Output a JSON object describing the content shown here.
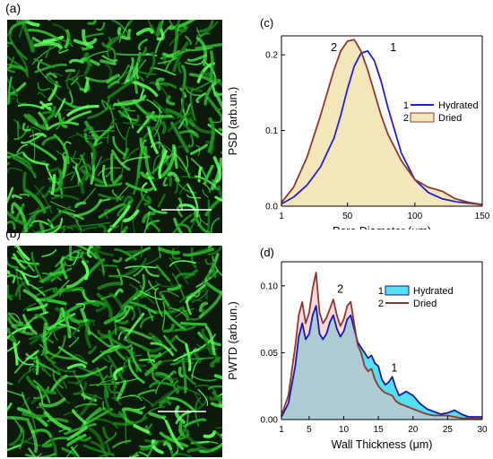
{
  "panels": {
    "a": {
      "label": "(a)",
      "description_hidden": ""
    },
    "b": {
      "label": "(b)"
    }
  },
  "chart_data": [
    {
      "panel_label": "(c)",
      "type": "area",
      "xlabel": "Pore  Diameter  (μm)",
      "ylabel": "PSD  (arb.un.)",
      "xlim": [
        1,
        150
      ],
      "ylim": [
        0,
        0.225
      ],
      "xticks": [
        1,
        50,
        100,
        150
      ],
      "yticks": [
        0.0,
        0.1,
        0.2
      ],
      "ytick_labels": [
        "0.0",
        "0.1",
        "0.2"
      ],
      "grid": false,
      "legend_position": "right",
      "series": [
        {
          "name": "Hydrated",
          "number": "1",
          "style": "line",
          "color": "#2020d0",
          "x": [
            1,
            10,
            20,
            30,
            40,
            45,
            50,
            55,
            60,
            65,
            70,
            75,
            80,
            90,
            100,
            110,
            120,
            130,
            140,
            150
          ],
          "y": [
            0.003,
            0.012,
            0.028,
            0.052,
            0.09,
            0.12,
            0.155,
            0.185,
            0.202,
            0.205,
            0.192,
            0.165,
            0.13,
            0.07,
            0.035,
            0.018,
            0.01,
            0.006,
            0.004,
            0.002
          ]
        },
        {
          "name": "Dried",
          "number": "2",
          "style": "filled",
          "color": "#8b3a2a",
          "fill": "#f4e6bb",
          "x": [
            1,
            10,
            20,
            30,
            40,
            45,
            50,
            55,
            60,
            65,
            70,
            75,
            80,
            90,
            100,
            110,
            120,
            130,
            140,
            150
          ],
          "y": [
            0.005,
            0.025,
            0.065,
            0.12,
            0.18,
            0.205,
            0.218,
            0.22,
            0.205,
            0.18,
            0.15,
            0.12,
            0.095,
            0.06,
            0.035,
            0.025,
            0.02,
            0.01,
            0.005,
            0.002
          ]
        }
      ],
      "curve_labels": [
        {
          "text": "2",
          "x": 40,
          "y": 0.205
        },
        {
          "text": "1",
          "x": 84,
          "y": 0.205
        }
      ]
    },
    {
      "panel_label": "(d)",
      "type": "area",
      "xlabel": "Wall  Thickness  (μm)",
      "ylabel": "PWTD  (arb.un.)",
      "xlim": [
        1,
        30
      ],
      "ylim": [
        0,
        0.118
      ],
      "xticks": [
        1,
        5,
        10,
        15,
        20,
        25,
        30
      ],
      "yticks": [
        0.0,
        0.05,
        0.1
      ],
      "ytick_labels": [
        "0.00",
        "0.05",
        "0.10"
      ],
      "grid": false,
      "legend_position": "top-right",
      "series": [
        {
          "name": "Hydrated",
          "number": "1",
          "style": "filled",
          "color": "#1a1aa8",
          "fill": "#55dff0",
          "x": [
            1,
            2,
            3,
            3.5,
            4,
            4.5,
            5,
            5.5,
            6,
            6.5,
            7,
            7.5,
            8,
            8.5,
            9,
            9.5,
            10,
            10.5,
            11,
            11.5,
            12,
            12.5,
            13,
            13.5,
            14,
            14.5,
            15,
            15.5,
            16,
            16.5,
            17,
            17.5,
            18,
            19,
            20,
            21,
            22,
            23,
            24,
            25,
            26,
            27,
            28,
            29,
            30
          ],
          "y": [
            0.002,
            0.012,
            0.04,
            0.062,
            0.072,
            0.06,
            0.064,
            0.078,
            0.085,
            0.064,
            0.06,
            0.064,
            0.073,
            0.078,
            0.068,
            0.062,
            0.066,
            0.075,
            0.078,
            0.068,
            0.058,
            0.054,
            0.05,
            0.046,
            0.048,
            0.042,
            0.04,
            0.03,
            0.026,
            0.028,
            0.032,
            0.024,
            0.018,
            0.021,
            0.018,
            0.012,
            0.008,
            0.006,
            0.004,
            0.005,
            0.007,
            0.004,
            0.002,
            0.002,
            0.002
          ]
        },
        {
          "name": "Dried",
          "number": "2",
          "style": "line",
          "color": "#8b3a2a",
          "fill": "#f5b8c0",
          "x": [
            1,
            2,
            3,
            3.5,
            4,
            4.5,
            5,
            5.5,
            6,
            6.5,
            7,
            7.5,
            8,
            8.5,
            9,
            9.5,
            10,
            10.5,
            11,
            11.5,
            12,
            12.5,
            13,
            13.5,
            14,
            14.5,
            15,
            15.5,
            16,
            16.5,
            17,
            17.5,
            18,
            19,
            20,
            21,
            22,
            23,
            24,
            25,
            26,
            27,
            28,
            29,
            30
          ],
          "y": [
            0.003,
            0.018,
            0.055,
            0.078,
            0.088,
            0.072,
            0.08,
            0.098,
            0.11,
            0.08,
            0.072,
            0.076,
            0.083,
            0.09,
            0.078,
            0.07,
            0.075,
            0.085,
            0.088,
            0.072,
            0.056,
            0.05,
            0.04,
            0.036,
            0.038,
            0.03,
            0.025,
            0.022,
            0.02,
            0.019,
            0.018,
            0.014,
            0.012,
            0.01,
            0.008,
            0.006,
            0.004,
            0.003,
            0.003,
            0.003,
            0.002,
            0.001,
            0.001,
            0.001,
            0.001
          ]
        }
      ],
      "curve_labels": [
        {
          "text": "2",
          "x": 9.5,
          "y": 0.095
        },
        {
          "text": "1",
          "x": 17.3,
          "y": 0.036
        }
      ]
    }
  ]
}
